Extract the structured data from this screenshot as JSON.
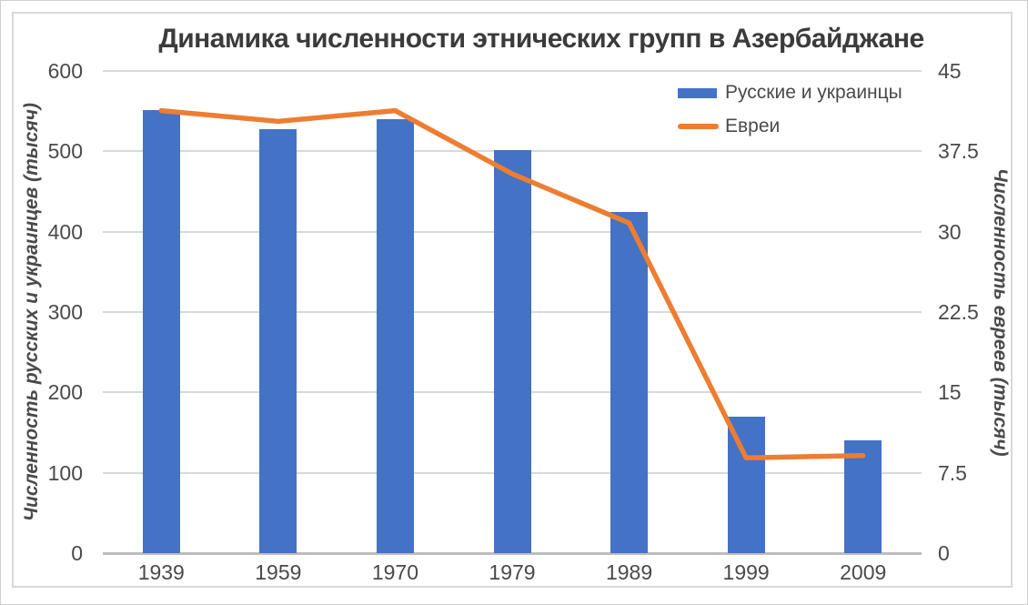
{
  "title": "Динамика численности этнических групп в Азербайджане",
  "legend": [
    {
      "label": "Русские и украинцы",
      "type": "bar",
      "color": "#4472C4"
    },
    {
      "label": "Евреи",
      "type": "line",
      "color": "#ED7D31"
    }
  ],
  "left_axis": {
    "title": "Численность русских и украинцев (тысяч)",
    "ticks": [
      "600",
      "500",
      "400",
      "300",
      "200",
      "100",
      "0"
    ]
  },
  "right_axis": {
    "title": "Численность евреев (тысяч)",
    "ticks": [
      "45",
      "37.5",
      "30",
      "22.5",
      "15",
      "7.5",
      "0"
    ]
  },
  "chart_data": {
    "type": "bar",
    "subtype": "bar+line-dual-axis",
    "title": "Динамика численности этнических групп в Азербайджане",
    "categories": [
      "1939",
      "1959",
      "1970",
      "1979",
      "1989",
      "1999",
      "2009"
    ],
    "series": [
      {
        "name": "Русские и украинцы",
        "type": "bar",
        "axis": "left",
        "color": "#4472C4",
        "values": [
          551,
          527,
          540,
          501,
          424,
          170,
          140
        ]
      },
      {
        "name": "Евреи",
        "type": "line",
        "axis": "right",
        "color": "#ED7D31",
        "values": [
          41.3,
          40.3,
          41.3,
          35.4,
          30.8,
          8.9,
          9.1
        ]
      }
    ],
    "left_ylabel": "Численность русских и украинцев (тысяч)",
    "right_ylabel": "Численность евреев (тысяч)",
    "left_ylim": [
      0,
      600
    ],
    "right_ylim": [
      0,
      45
    ],
    "grid": true,
    "legend_position": "top-right"
  },
  "colors": {
    "bar": "#4472C4",
    "line": "#ED7D31",
    "gridline": "#D9D9D9",
    "axis_line": "#BDBDBD",
    "tick_text": "#4A4A4A",
    "title_text": "#3B3B3B"
  }
}
